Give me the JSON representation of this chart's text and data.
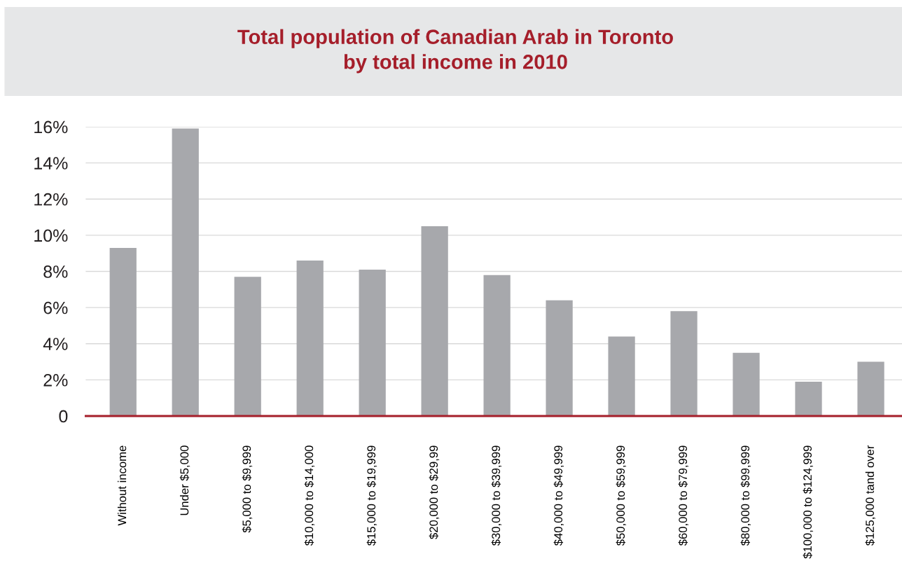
{
  "chart_data": {
    "type": "bar",
    "title": "Total population of Canadian Arab in Toronto\nby total income in 2010",
    "categories": [
      "Without income",
      "Under $5,000",
      "$5,000 to $9,999",
      "$10,000 to $14,000",
      "$15,000 to $19,999",
      "$20,000 to $29,99",
      "$30,000 to $39,999",
      "$40,000 to $49,999",
      "$50,000 to $59,999",
      "$60,000 to $79,999",
      "$80,000 to $99,999",
      "$100,000 to $124,999",
      "$125,000 tand over"
    ],
    "values": [
      9.3,
      15.9,
      7.7,
      8.6,
      8.1,
      10.5,
      7.8,
      6.4,
      4.4,
      5.8,
      3.5,
      1.9,
      3.0
    ],
    "color": "#a7a8ac",
    "ylim": [
      0,
      16
    ],
    "yticks": [
      {
        "value": 0,
        "label": "0"
      },
      {
        "value": 2,
        "label": "2%"
      },
      {
        "value": 4,
        "label": "4%"
      },
      {
        "value": 6,
        "label": "6%"
      },
      {
        "value": 8,
        "label": "8%"
      },
      {
        "value": 10,
        "label": "10%"
      },
      {
        "value": 12,
        "label": "12%"
      },
      {
        "value": 14,
        "label": "14%"
      },
      {
        "value": 16,
        "label": "16%"
      }
    ],
    "grid": "y",
    "legend": false
  }
}
